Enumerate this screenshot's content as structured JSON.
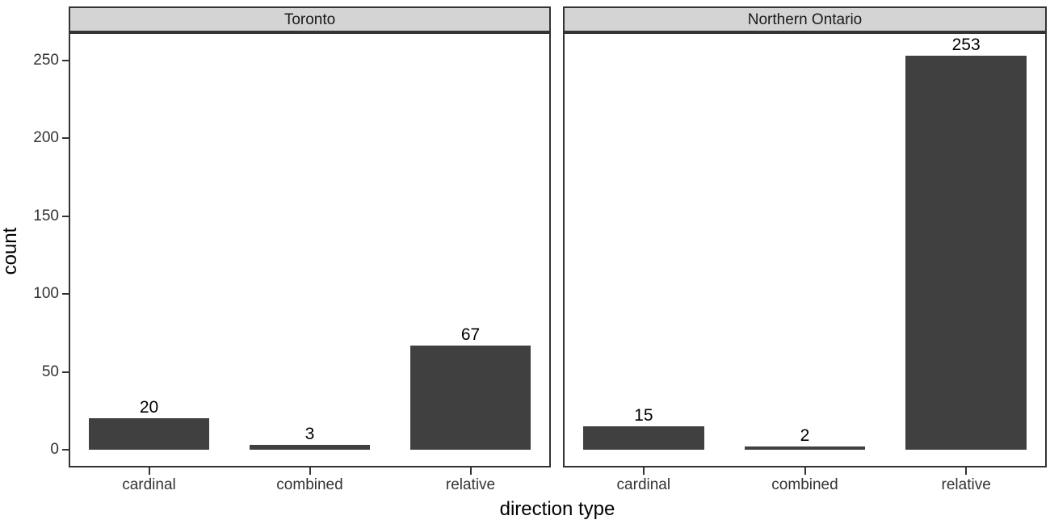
{
  "chart_data": {
    "type": "bar",
    "title": "",
    "xlabel": "direction type",
    "ylabel": "count",
    "categories": [
      "cardinal",
      "combined",
      "relative"
    ],
    "facets": [
      {
        "label": "Toronto",
        "categories": [
          "cardinal",
          "combined",
          "relative"
        ],
        "values": [
          20,
          3,
          67
        ]
      },
      {
        "label": "Northern Ontario",
        "categories": [
          "cardinal",
          "combined",
          "relative"
        ],
        "values": [
          15,
          2,
          253
        ]
      }
    ],
    "yticks": [
      0,
      50,
      100,
      150,
      200,
      250
    ],
    "ylim": [
      0,
      268
    ],
    "grid": "off",
    "legend": "none",
    "value_labels": [
      20,
      3,
      67,
      15,
      2,
      253
    ],
    "colors": {
      "bar": "#404040",
      "strip_background": "#d4d4d4",
      "panel_border": "#333333",
      "axis_text": "#333333",
      "title_text": "#000000",
      "background": "#ffffff"
    }
  }
}
